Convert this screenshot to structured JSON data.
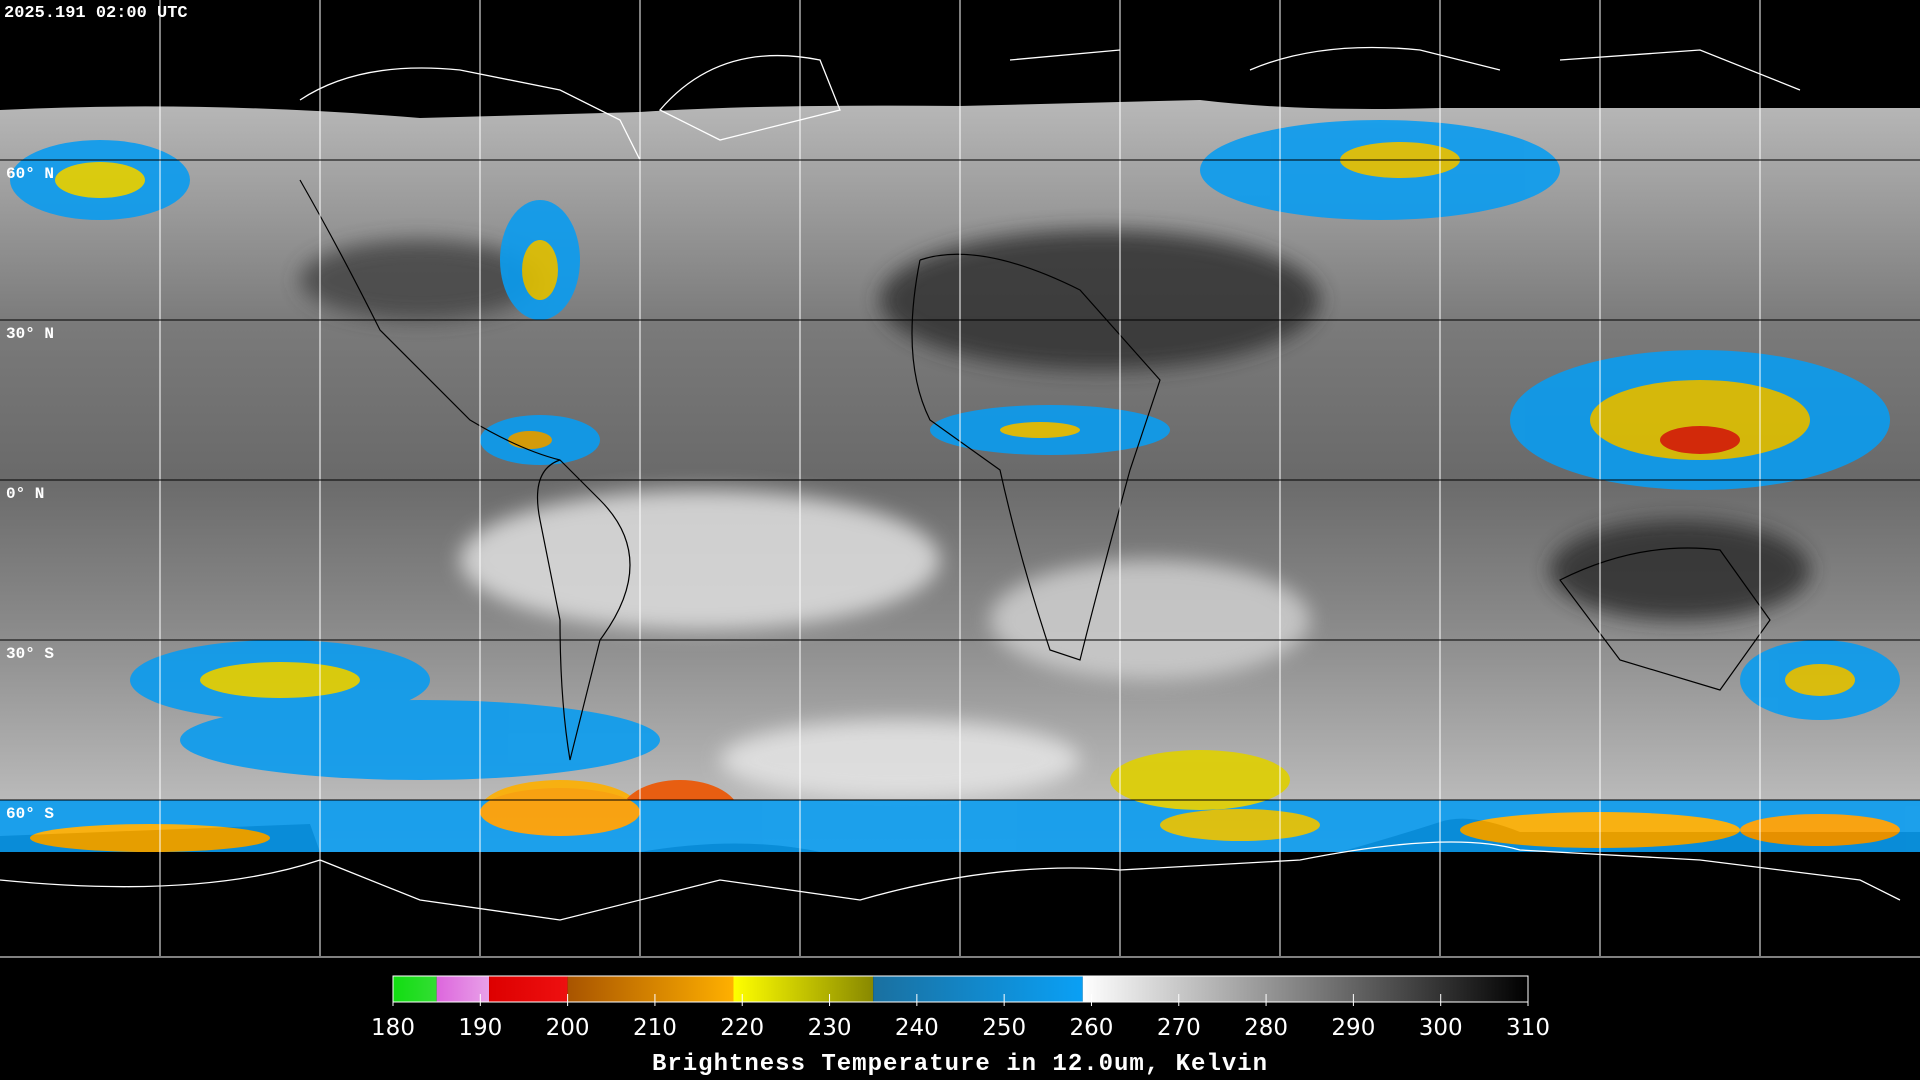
{
  "header": {
    "timestamp": "2025.191 02:00 UTC"
  },
  "map": {
    "latitude_labels": [
      "60° N",
      "30° N",
      "0° N",
      "30° S",
      "60° S"
    ]
  },
  "colorbar": {
    "range": [
      180,
      310
    ],
    "ticks": [
      180,
      190,
      200,
      210,
      220,
      230,
      240,
      250,
      260,
      270,
      280,
      290,
      300,
      310
    ],
    "segments": [
      {
        "from": 180,
        "to": 185,
        "colors": [
          "#11dd11",
          "#33dd33"
        ]
      },
      {
        "from": 185,
        "to": 191,
        "colors": [
          "#dd66dd",
          "#e8a0e8"
        ]
      },
      {
        "from": 191,
        "to": 200,
        "colors": [
          "#dd0000",
          "#ee1010"
        ]
      },
      {
        "from": 200,
        "to": 219,
        "colors": [
          "#a85400",
          "#ffb000"
        ]
      },
      {
        "from": 219,
        "to": 235,
        "colors": [
          "#ffff00",
          "#888800"
        ]
      },
      {
        "from": 235,
        "to": 259,
        "colors": [
          "#1a70a0",
          "#0aa0f5"
        ]
      },
      {
        "from": 259,
        "to": 310,
        "colors": [
          "#ffffff",
          "#000000"
        ]
      }
    ],
    "title": "Brightness Temperature in 12.0um, Kelvin"
  }
}
